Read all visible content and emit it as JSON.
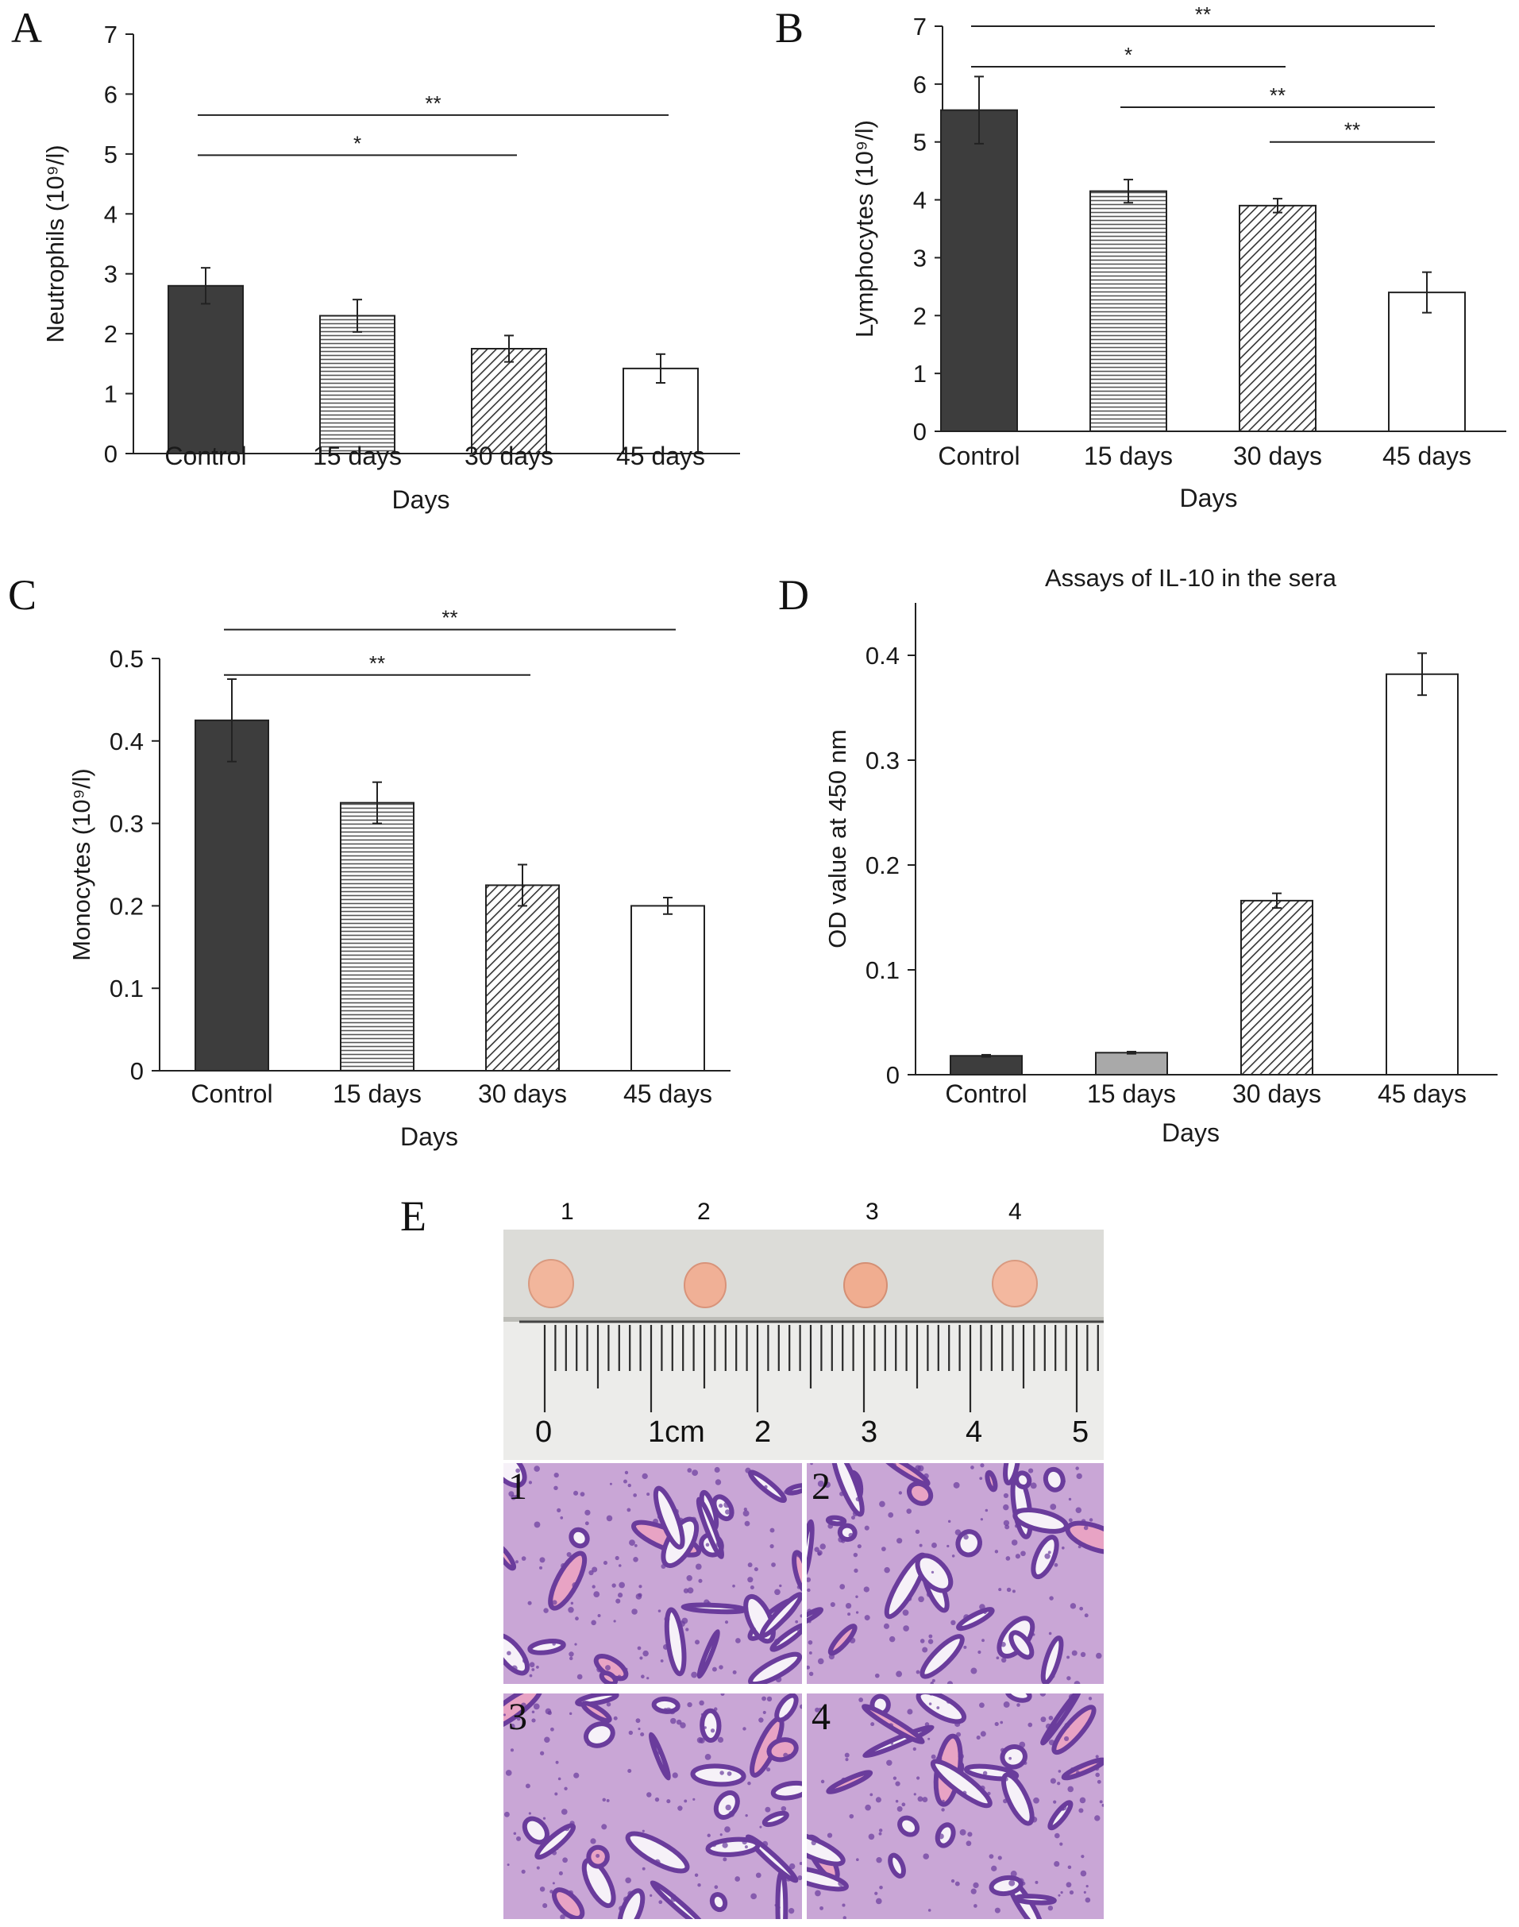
{
  "colors": {
    "control": "#3d3d3d",
    "hatch_line": "#555555",
    "axis": "#222222",
    "tissue_bg": "#c9a6d6",
    "tissue_cells": "#6a3c9c",
    "tissue_pink": "#e8a3c4",
    "ruler_bg": "#e6e6e3",
    "tumor": "#f0b59a"
  },
  "chart_data": [
    {
      "panel": "A",
      "type": "bar",
      "categories": [
        "Control",
        "15 days",
        "30 days",
        "45 days"
      ],
      "values": [
        2.8,
        2.3,
        1.75,
        1.42
      ],
      "errors": [
        0.3,
        0.27,
        0.22,
        0.24
      ],
      "fills": [
        "solid",
        "horizontal",
        "diagonal",
        "white"
      ],
      "ylim": [
        0,
        7
      ],
      "yticks": [
        "0",
        "1",
        "2",
        "3",
        "4",
        "5",
        "6",
        "7"
      ],
      "ylabel": "Neutrophils (10⁹/l)",
      "xlabel": "Days",
      "title": "",
      "significance": [
        {
          "from": 0,
          "to": 3,
          "y": 5.65,
          "label": "**"
        },
        {
          "from": 0,
          "to": 2,
          "y": 4.98,
          "label": "*"
        }
      ]
    },
    {
      "panel": "B",
      "type": "bar",
      "categories": [
        "Control",
        "15 days",
        "30 days",
        "45 days"
      ],
      "values": [
        5.55,
        4.15,
        3.9,
        2.4
      ],
      "errors": [
        0.58,
        0.2,
        0.12,
        0.35
      ],
      "fills": [
        "solid",
        "horizontal",
        "diagonal",
        "white"
      ],
      "ylim": [
        0,
        7
      ],
      "yticks": [
        "0",
        "1",
        "2",
        "3",
        "4",
        "5",
        "6",
        "7"
      ],
      "ylabel": "Lymphocytes (10⁹/l)",
      "xlabel": "Days",
      "title": "",
      "significance": [
        {
          "from": 0,
          "to": 3,
          "y": 7.0,
          "label": "**"
        },
        {
          "from": 0,
          "to": 2,
          "y": 6.3,
          "label": "*"
        },
        {
          "from": 1,
          "to": 3,
          "y": 5.6,
          "label": "**"
        },
        {
          "from": 2,
          "to": 3,
          "y": 5.0,
          "label": "**"
        }
      ]
    },
    {
      "panel": "C",
      "type": "bar",
      "categories": [
        "Control",
        "15 days",
        "30 days",
        "45 days"
      ],
      "values": [
        0.425,
        0.325,
        0.225,
        0.2
      ],
      "errors": [
        0.05,
        0.025,
        0.025,
        0.01
      ],
      "fills": [
        "solid",
        "horizontal",
        "diagonal",
        "white"
      ],
      "ylim": [
        0,
        0.5
      ],
      "yticks": [
        "0",
        "0.1",
        "0.2",
        "0.3",
        "0.4",
        "0.5"
      ],
      "ylabel": "Monocytes (10⁹/l)",
      "xlabel": "Days",
      "title": "",
      "significance": [
        {
          "from": 0,
          "to": 3,
          "y": 0.535,
          "label": "**"
        },
        {
          "from": 0,
          "to": 2,
          "y": 0.48,
          "label": "**"
        }
      ]
    },
    {
      "panel": "D",
      "type": "bar",
      "categories": [
        "Control",
        "15 days",
        "30 days",
        "45 days"
      ],
      "values": [
        0.018,
        0.021,
        0.166,
        0.382
      ],
      "errors": [
        0.001,
        0.001,
        0.007,
        0.02
      ],
      "fills": [
        "solid",
        "lightgray",
        "diagonal",
        "white"
      ],
      "ylim": [
        0,
        0.45
      ],
      "yticks": [
        "0",
        "0.1",
        "0.2",
        "0.3",
        "0.4"
      ],
      "ylabel": "OD value at 450 nm",
      "xlabel": "Days",
      "title": "Assays of IL-10 in the sera",
      "significance": []
    }
  ],
  "panel_labels": {
    "a": "A",
    "b": "B",
    "c": "C",
    "d": "D",
    "e": "E"
  },
  "photo": {
    "tumor_numbers": [
      "1",
      "2",
      "3",
      "4"
    ],
    "ruler_labels": [
      "0",
      "1cm",
      "2",
      "3",
      "4",
      "5"
    ],
    "tile_numbers": [
      "1",
      "2",
      "3",
      "4"
    ]
  }
}
